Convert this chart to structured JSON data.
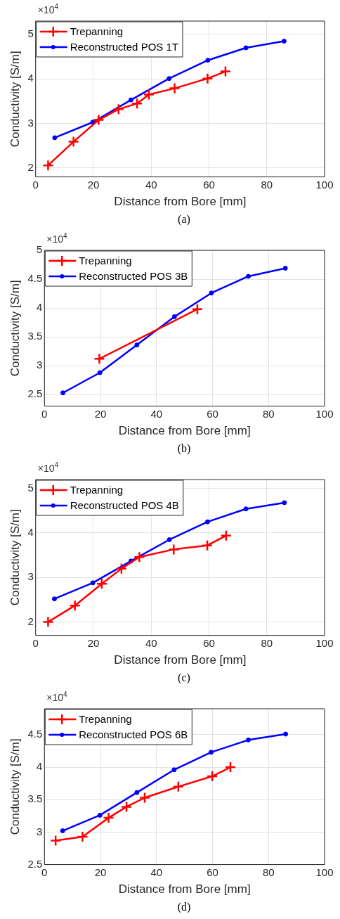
{
  "chart_data": [
    {
      "type": "line",
      "xlabel": "Distance from Bore [mm]",
      "ylabel": "Conductivity [S/m]",
      "xlim": [
        0,
        100
      ],
      "xticks": [
        0,
        20,
        40,
        60,
        80,
        100
      ],
      "ylim": [
        1.8,
        5.3
      ],
      "yticks": [
        2,
        3,
        4,
        5
      ],
      "grid": true,
      "legend": "top left",
      "annotations": [
        "×10$^{4}$",
        "(a)"
      ],
      "series": [
        {
          "name": "Trepanning",
          "color": "#ff0000",
          "marker": "cross",
          "x": [
            4.3,
            13.1,
            21.8,
            28.7,
            35.1,
            39.2,
            48.1,
            59.5,
            65.7
          ],
          "values": [
            2.06,
            2.59,
            3.08,
            3.32,
            3.45,
            3.65,
            3.79,
            4.01,
            4.17
          ]
        },
        {
          "name": "Reconstructed POS 1T",
          "color": "#0000ff",
          "marker": "circle",
          "x": [
            6.6,
            19.8,
            33.0,
            46.2,
            59.6,
            72.8,
            86.0
          ],
          "values": [
            2.68,
            3.03,
            3.53,
            4.01,
            4.42,
            4.7,
            4.85
          ]
        }
      ]
    },
    {
      "type": "line",
      "xlabel": "Distance from Bore [mm]",
      "ylabel": "Conductivity [S/m]",
      "xlim": [
        0,
        100
      ],
      "xticks": [
        0,
        20,
        40,
        60,
        80,
        100
      ],
      "ylim": [
        2.3,
        5
      ],
      "yticks": [
        2.5,
        3,
        3.5,
        4,
        4.5,
        5
      ],
      "grid": true,
      "legend": "top left",
      "annotations": [
        "×10$^{4}$",
        "(b)"
      ],
      "series": [
        {
          "name": "Trepanning",
          "color": "#ff0000",
          "marker": "cross",
          "x": [
            19.6,
            54.6
          ],
          "values": [
            3.12,
            3.98
          ]
        },
        {
          "name": "Reconstructed POS 3B",
          "color": "#0000ff",
          "marker": "circle",
          "x": [
            6.6,
            19.8,
            33.0,
            46.4,
            59.6,
            72.8,
            86.0
          ],
          "values": [
            2.53,
            2.88,
            3.36,
            3.85,
            4.26,
            4.55,
            4.69
          ]
        }
      ]
    },
    {
      "type": "line",
      "xlabel": "Distance from Bore [mm]",
      "ylabel": "Conductivity [S/m]",
      "xlim": [
        0,
        100
      ],
      "xticks": [
        0,
        20,
        40,
        60,
        80,
        100
      ],
      "ylim": [
        1.7,
        5.2
      ],
      "yticks": [
        2,
        3,
        4,
        5
      ],
      "grid": true,
      "legend": "top left",
      "annotations": [
        "×10$^{4}$",
        "(c)"
      ],
      "series": [
        {
          "name": "Trepanning",
          "color": "#ff0000",
          "marker": "cross",
          "x": [
            4.3,
            13.6,
            22.9,
            29.7,
            35.9,
            47.8,
            59.4,
            65.9
          ],
          "values": [
            2.0,
            2.37,
            2.86,
            3.2,
            3.46,
            3.63,
            3.72,
            3.94
          ]
        },
        {
          "name": "Reconstructed POS 4B",
          "color": "#0000ff",
          "marker": "circle",
          "x": [
            6.5,
            19.8,
            33.0,
            46.3,
            59.5,
            72.8,
            86.1
          ],
          "values": [
            2.52,
            2.88,
            3.37,
            3.85,
            4.25,
            4.54,
            4.68
          ]
        }
      ]
    },
    {
      "type": "line",
      "xlabel": "Distance from Bore [mm]",
      "ylabel": "Conductivity [S/m]",
      "xlim": [
        0,
        100
      ],
      "xticks": [
        0,
        20,
        40,
        60,
        80,
        100
      ],
      "ylim": [
        2.5,
        4.9
      ],
      "yticks": [
        2.5,
        3,
        3.5,
        4,
        4.5
      ],
      "grid": true,
      "legend": "top left",
      "annotations": [
        "×10$^{4}$",
        "(d)"
      ],
      "series": [
        {
          "name": "Trepanning",
          "color": "#ff0000",
          "marker": "cross",
          "x": [
            4.0,
            13.6,
            22.9,
            29.3,
            35.8,
            47.8,
            59.9,
            66.4
          ],
          "values": [
            2.87,
            2.93,
            3.22,
            3.39,
            3.53,
            3.7,
            3.86,
            4.0
          ]
        },
        {
          "name": "Reconstructed POS 6B",
          "color": "#0000ff",
          "marker": "circle",
          "x": [
            6.5,
            19.8,
            33.0,
            46.3,
            59.5,
            72.8,
            86.1
          ],
          "values": [
            3.02,
            3.26,
            3.61,
            3.96,
            4.23,
            4.42,
            4.51
          ]
        }
      ]
    }
  ]
}
